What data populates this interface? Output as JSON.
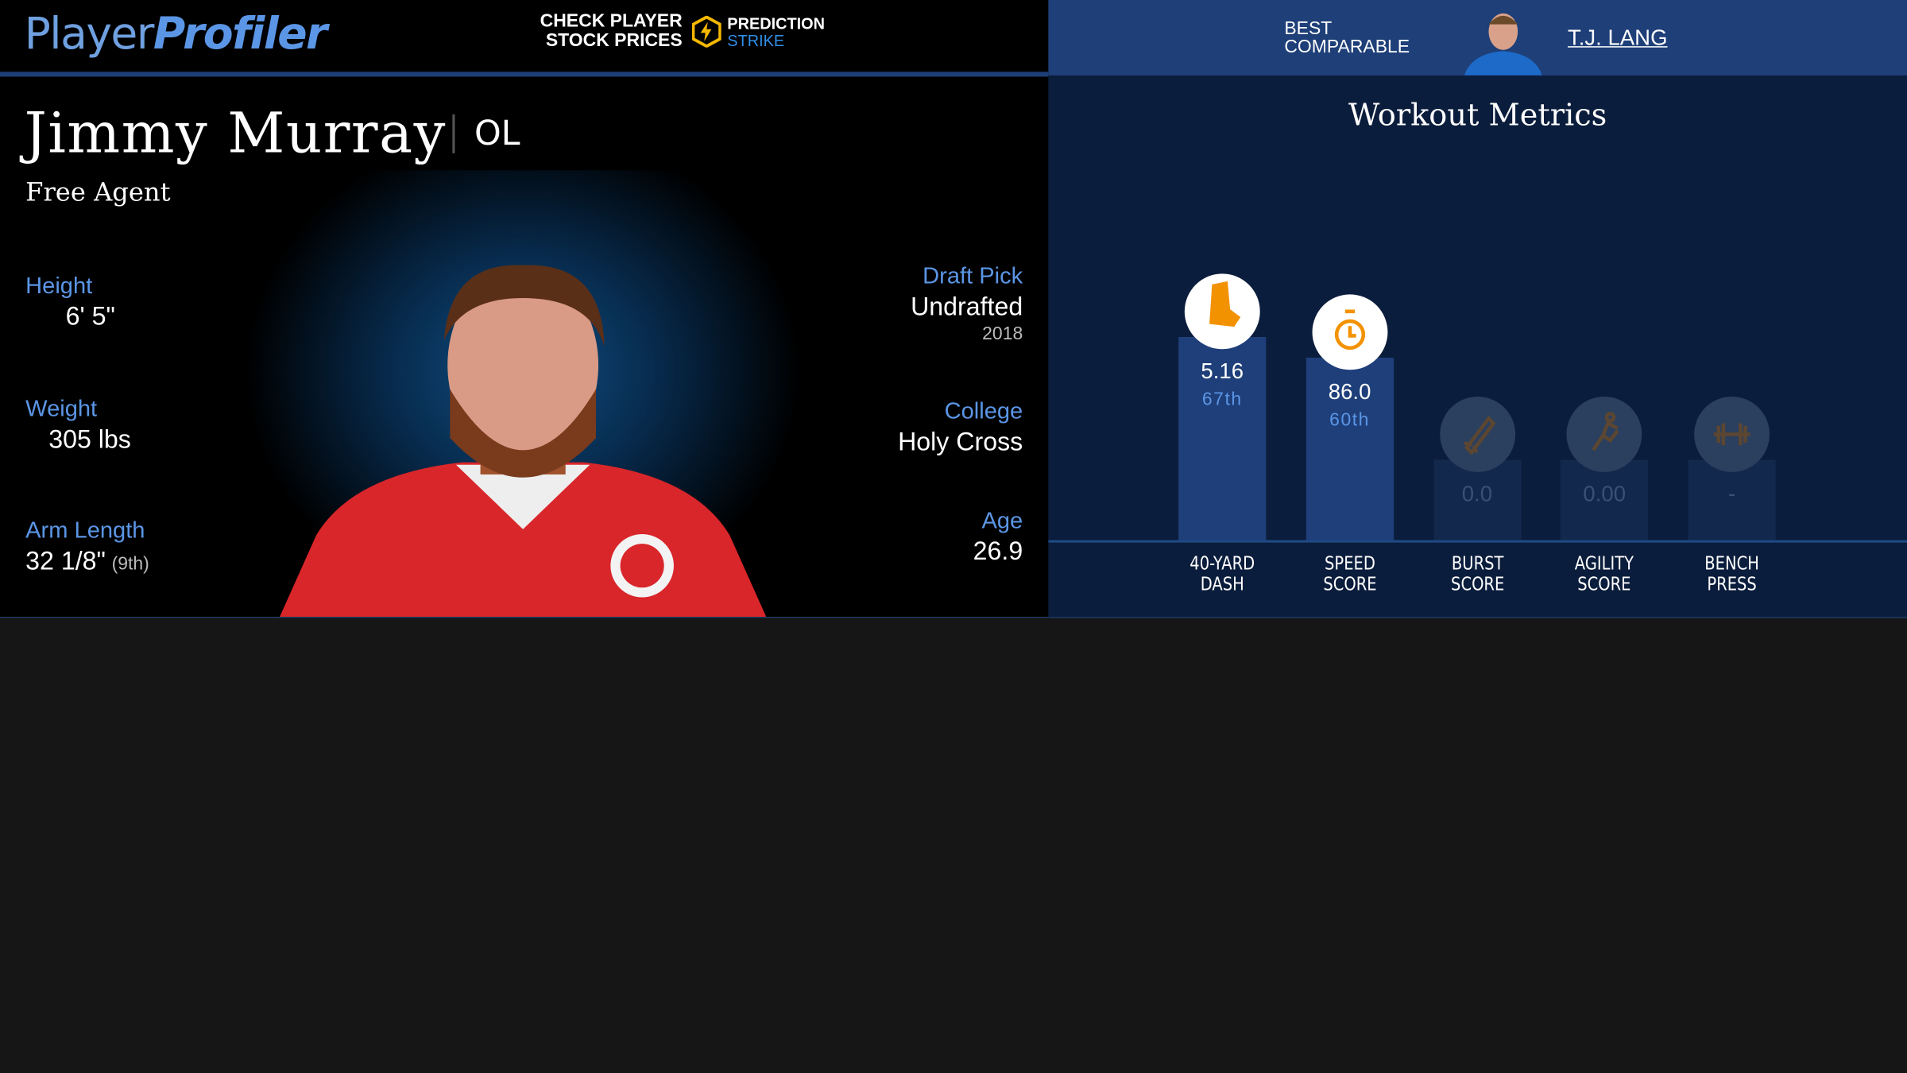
{
  "header": {
    "logo_part1": "Player",
    "logo_part2": "Profiler",
    "promo_line1": "CHECK PLAYER",
    "promo_line2": "STOCK PRICES",
    "brand": "PREDICTION",
    "brand_sub": "STRIKE",
    "comparable_line1": "BEST",
    "comparable_line2": "COMPARABLE",
    "comparable_name": "T.J. LANG"
  },
  "player": {
    "name": "Jimmy Murray",
    "position": "OL",
    "status": "Free Agent",
    "stats_left": [
      {
        "label": "Height",
        "value": "6' 5\""
      },
      {
        "label": "Weight",
        "value": "305 lbs"
      },
      {
        "label": "Arm Length",
        "value": "32 1/8\"",
        "note": "(9th)"
      }
    ],
    "stats_right": [
      {
        "label": "Draft Pick",
        "value": "Undrafted",
        "note": "2018"
      },
      {
        "label": "College",
        "value": "Holy Cross"
      },
      {
        "label": "Age",
        "value": "26.9"
      }
    ]
  },
  "workout": {
    "title": "Workout Metrics",
    "metrics": [
      {
        "label": "40-YARD DASH",
        "value": "5.16",
        "percentile": 67,
        "percentile_label": "67th"
      },
      {
        "label": "SPEED SCORE",
        "value": "86.0",
        "percentile": 60,
        "percentile_label": "60th"
      },
      {
        "label": "BURST SCORE",
        "value": "0.0"
      },
      {
        "label": "AGILITY SCORE",
        "value": "0.00"
      },
      {
        "label": "BENCH PRESS",
        "value": "-"
      }
    ]
  }
}
